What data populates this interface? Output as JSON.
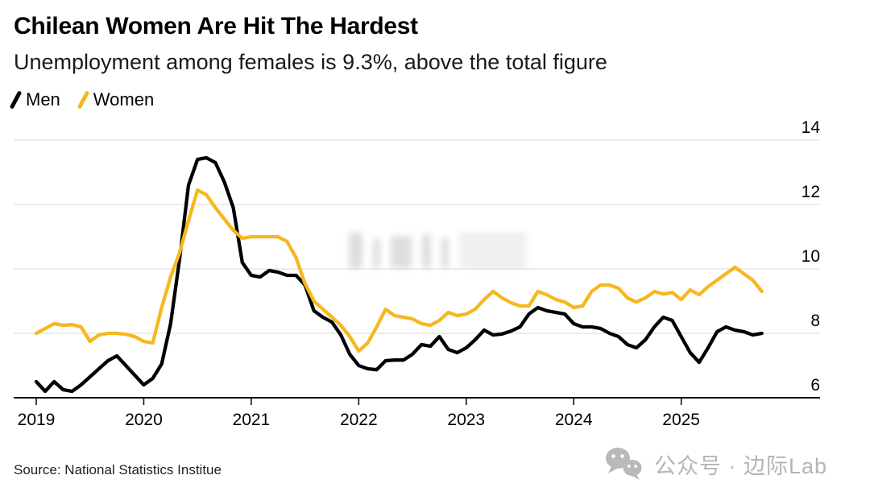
{
  "header": {
    "title": "Chilean Women Are Hit The Hardest",
    "subtitle": "Unemployment among females is 9.3%, above the total figure"
  },
  "legend": {
    "items": [
      {
        "label": "Men",
        "color": "#000000"
      },
      {
        "label": "Women",
        "color": "#F6B81E"
      }
    ]
  },
  "chart_data": {
    "type": "line",
    "title": "Chilean Women Are Hit The Hardest",
    "subtitle": "Unemployment among females is 9.3%, above the total figure",
    "unit": "percent",
    "x_frequency": "monthly",
    "x_start": "2019-01",
    "x_end": "2025-10",
    "x_tick_labels": [
      "2019",
      "2020",
      "2021",
      "2022",
      "2023",
      "2024",
      "2025"
    ],
    "y_ticks": [
      6,
      8,
      10,
      12,
      14
    ],
    "ylim": [
      6,
      14
    ],
    "grid": "horizontal",
    "legend_position": "top-left",
    "series": [
      {
        "name": "Men",
        "color": "#000000",
        "values": [
          6.5,
          6.2,
          6.5,
          6.25,
          6.2,
          6.4,
          6.65,
          6.9,
          7.15,
          7.3,
          7.0,
          6.7,
          6.4,
          6.6,
          7.05,
          8.3,
          10.3,
          12.6,
          13.4,
          13.45,
          13.3,
          12.7,
          11.9,
          10.2,
          9.8,
          9.75,
          9.95,
          9.9,
          9.8,
          9.8,
          9.5,
          8.7,
          8.5,
          8.35,
          7.95,
          7.35,
          7.0,
          6.9,
          6.87,
          7.15,
          7.17,
          7.17,
          7.35,
          7.65,
          7.6,
          7.9,
          7.5,
          7.4,
          7.55,
          7.8,
          8.1,
          7.95,
          7.98,
          8.07,
          8.2,
          8.6,
          8.8,
          8.7,
          8.65,
          8.6,
          8.3,
          8.2,
          8.2,
          8.15,
          8.0,
          7.9,
          7.65,
          7.55,
          7.8,
          8.2,
          8.5,
          8.4,
          7.9,
          7.4,
          7.1,
          7.55,
          8.05,
          8.2,
          8.1,
          8.05,
          7.95,
          8.0
        ]
      },
      {
        "name": "Women",
        "color": "#F6B81E",
        "values": [
          8.0,
          8.15,
          8.3,
          8.25,
          8.27,
          8.2,
          7.75,
          7.95,
          8.0,
          8.0,
          7.97,
          7.9,
          7.75,
          7.7,
          8.8,
          9.75,
          10.5,
          11.5,
          12.45,
          12.3,
          11.9,
          11.55,
          11.2,
          10.95,
          11.0,
          11.0,
          11.0,
          11.0,
          10.85,
          10.35,
          9.55,
          9.0,
          8.75,
          8.5,
          8.25,
          7.9,
          7.45,
          7.7,
          8.2,
          8.75,
          8.55,
          8.5,
          8.45,
          8.3,
          8.25,
          8.4,
          8.65,
          8.55,
          8.6,
          8.75,
          9.05,
          9.3,
          9.1,
          8.95,
          8.85,
          8.85,
          9.3,
          9.2,
          9.05,
          8.97,
          8.8,
          8.85,
          9.3,
          9.5,
          9.5,
          9.4,
          9.1,
          8.97,
          9.1,
          9.3,
          9.22,
          9.27,
          9.05,
          9.35,
          9.2,
          9.45,
          9.65,
          9.85,
          10.05,
          9.85,
          9.65,
          9.3
        ]
      }
    ]
  },
  "source": "Source: National Statistics Institue",
  "watermark": {
    "text": "公众号 · 边际Lab",
    "icon": "wechat-icon"
  }
}
